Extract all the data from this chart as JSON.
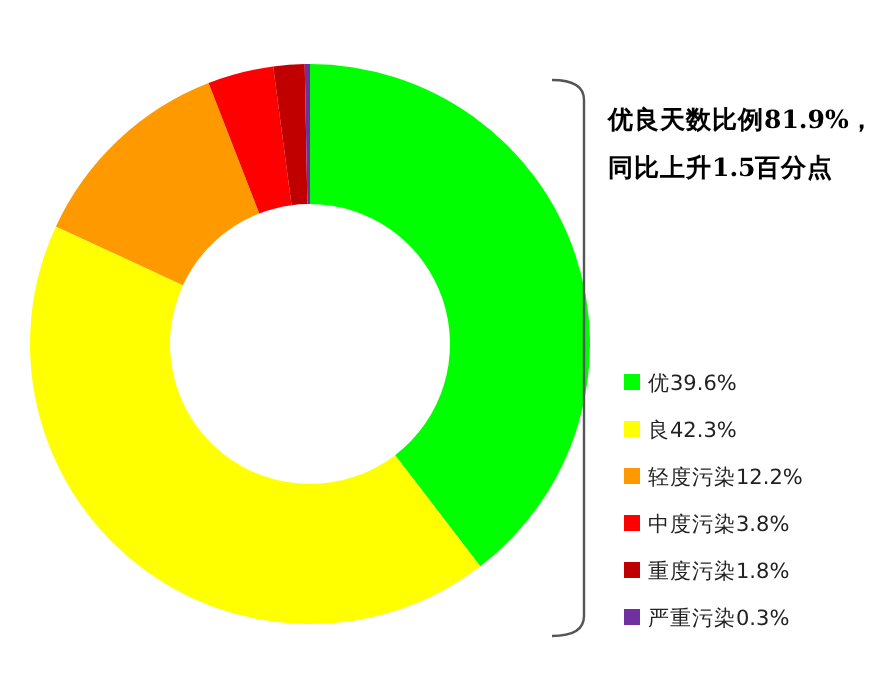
{
  "chart_data": {
    "type": "donut",
    "categories": [
      "优",
      "良",
      "轻度污染",
      "中度污染",
      "重度污染",
      "严重污染"
    ],
    "values": [
      39.6,
      42.3,
      12.2,
      3.8,
      1.8,
      0.3
    ],
    "value_labels": [
      "39.6%",
      "42.3%",
      "12.2%",
      "3.8%",
      "1.8%",
      "0.3%"
    ],
    "colors": [
      "#00ff00",
      "#ffff00",
      "#ff9900",
      "#ff0000",
      "#c00000",
      "#7030a0"
    ],
    "annotations": [
      "优良天数比例81.9%，",
      "同比上升1.5百分点"
    ],
    "legend": "right"
  }
}
